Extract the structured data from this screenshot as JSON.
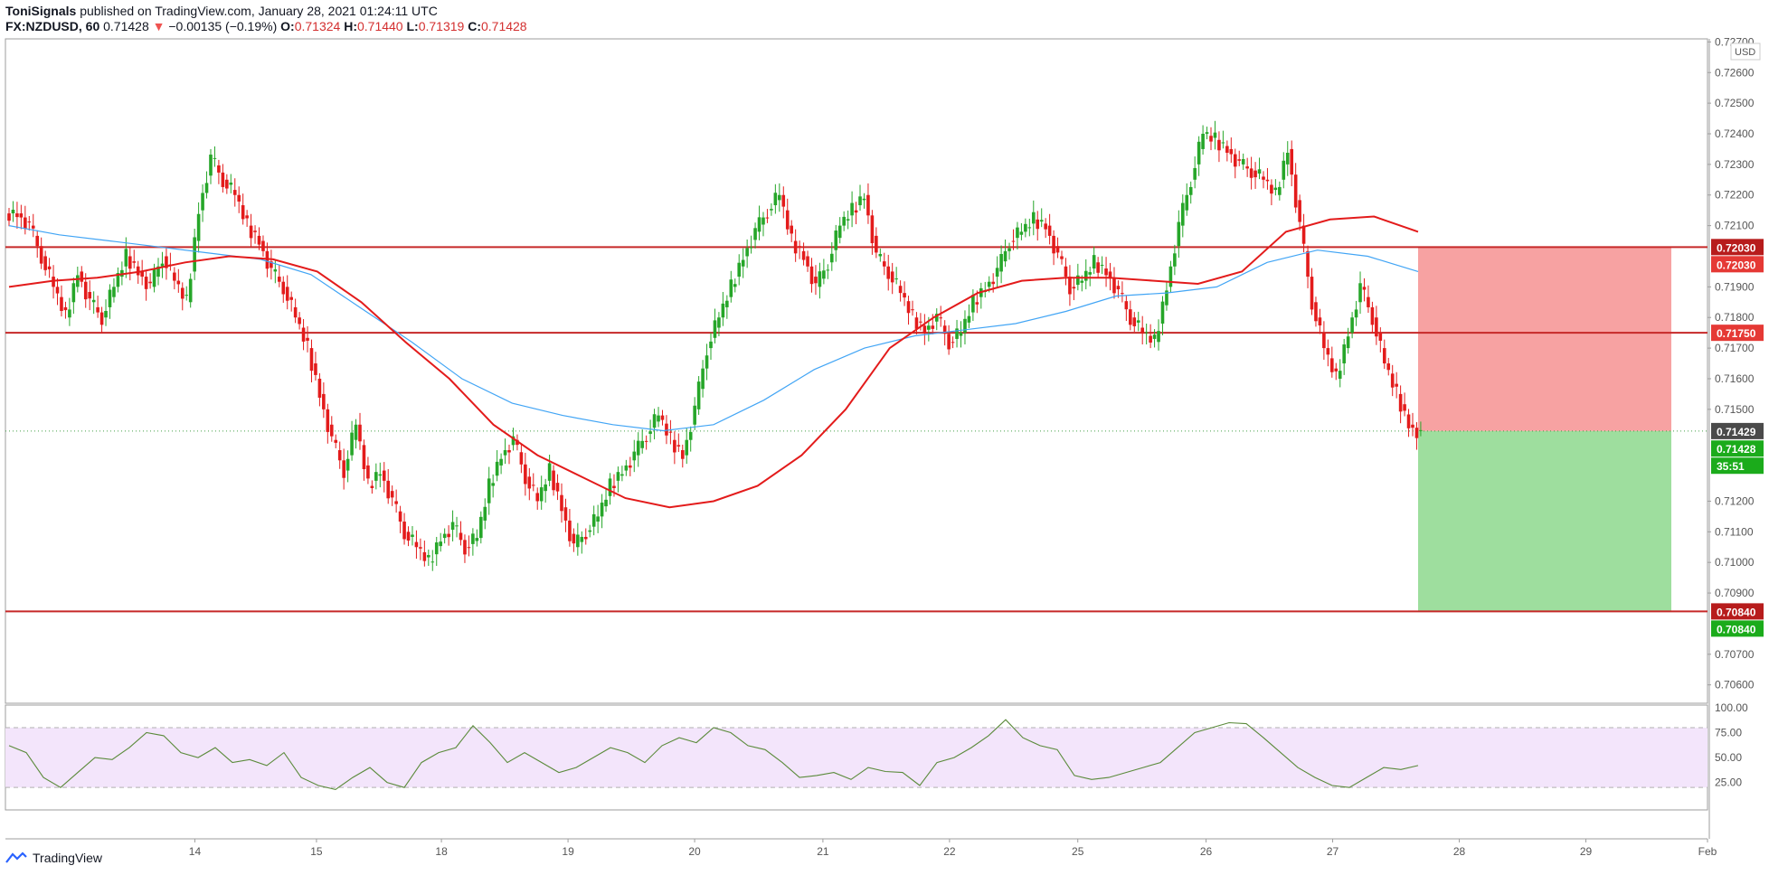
{
  "header": {
    "publisher": "ToniSignals",
    "published_text": " published on TradingView.com, January 28, 2021 01:24:11 UTC",
    "symbol": "FX:NZDUSD, 60",
    "last": "0.71428",
    "change": "−0.00135 (−0.19%)",
    "o_label": "O:",
    "o_val": "0.71324",
    "h_label": "H:",
    "h_val": "0.71440",
    "l_label": "L:",
    "l_val": "0.71319",
    "c_label": "C:",
    "c_val": "0.71428"
  },
  "price_axis": {
    "currency": "USD",
    "ticks": [
      "0.72700",
      "0.72600",
      "0.72500",
      "0.72400",
      "0.72300",
      "0.72200",
      "0.72100",
      "0.71900",
      "0.71800",
      "0.71700",
      "0.71600",
      "0.71500",
      "0.71200",
      "0.71100",
      "0.71000",
      "0.70900",
      "0.70700",
      "0.70600"
    ],
    "top_clip": "0.72700"
  },
  "price_tags": [
    {
      "text": "0.72030",
      "price": 0.7203,
      "color": "#b71c1c"
    },
    {
      "text": "0.72030",
      "price": 0.7203,
      "color": "#e53935",
      "offset": 1
    },
    {
      "text": "0.71750",
      "price": 0.7175,
      "color": "#e53935"
    },
    {
      "text": "0.71429",
      "price": 0.71429,
      "color": "#4a4a4a"
    },
    {
      "text": "0.71428",
      "price": 0.71428,
      "color": "#26a69a",
      "offset": 1,
      "fill": "#1bab1b"
    },
    {
      "text": "35:51",
      "price": 0.71428,
      "color": "#1bab1b",
      "offset": 2
    },
    {
      "text": "0.70840",
      "price": 0.7084,
      "color": "#b71c1c"
    },
    {
      "text": "0.70840",
      "price": 0.7084,
      "color": "#1bab1b",
      "offset": 1
    }
  ],
  "rsi_axis": [
    "100.00",
    "75.00",
    "50.00",
    "25.00"
  ],
  "time_axis": [
    {
      "label": "14",
      "pos": 0.092
    },
    {
      "label": "15",
      "pos": 0.165
    },
    {
      "label": "18",
      "pos": 0.24
    },
    {
      "label": "19",
      "pos": 0.316
    },
    {
      "label": "20",
      "pos": 0.392
    },
    {
      "label": "21",
      "pos": 0.469
    },
    {
      "label": "22",
      "pos": 0.545
    },
    {
      "label": "25",
      "pos": 0.622
    },
    {
      "label": "26",
      "pos": 0.699
    },
    {
      "label": "27",
      "pos": 0.775
    },
    {
      "label": "28",
      "pos": 0.851
    },
    {
      "label": "29",
      "pos": 0.927
    },
    {
      "label": "Feb",
      "pos": 1.0
    }
  ],
  "levels": [
    0.7203,
    0.7175,
    0.7084
  ],
  "current_price": 0.71429,
  "position": {
    "entry": 0.71429,
    "stop": 0.7203,
    "target": 0.7084
  },
  "chart_data": {
    "type": "candlestick",
    "symbol": "NZDUSD",
    "timeframe": "60",
    "ylim": [
      0.7054,
      0.7271
    ],
    "approx_close_path": [
      0.7214,
      0.721,
      0.72,
      0.719,
      0.718,
      0.7195,
      0.7185,
      0.718,
      0.719,
      0.72,
      0.7195,
      0.719,
      0.72,
      0.7192,
      0.7185,
      0.7215,
      0.7232,
      0.7225,
      0.722,
      0.721,
      0.7205,
      0.7195,
      0.719,
      0.718,
      0.717,
      0.7155,
      0.714,
      0.713,
      0.7145,
      0.7125,
      0.713,
      0.712,
      0.711,
      0.7105,
      0.71,
      0.7108,
      0.7112,
      0.7105,
      0.7108,
      0.7125,
      0.7135,
      0.714,
      0.7128,
      0.712,
      0.713,
      0.7118,
      0.7105,
      0.711,
      0.7115,
      0.7125,
      0.713,
      0.7135,
      0.7142,
      0.7148,
      0.714,
      0.7135,
      0.715,
      0.717,
      0.718,
      0.719,
      0.72,
      0.7208,
      0.7215,
      0.722,
      0.7205,
      0.72,
      0.719,
      0.7198,
      0.721,
      0.7215,
      0.722,
      0.72,
      0.7195,
      0.7188,
      0.718,
      0.7176,
      0.718,
      0.7172,
      0.7175,
      0.7185,
      0.719,
      0.7195,
      0.7205,
      0.7208,
      0.7212,
      0.721,
      0.72,
      0.719,
      0.7192,
      0.7198,
      0.7195,
      0.7188,
      0.718,
      0.7175,
      0.7172,
      0.719,
      0.721,
      0.7225,
      0.724,
      0.7238,
      0.7235,
      0.723,
      0.7228,
      0.7225,
      0.722,
      0.7235,
      0.721,
      0.7185,
      0.717,
      0.716,
      0.7175,
      0.719,
      0.718,
      0.7165,
      0.7155,
      0.7145,
      0.7142
    ],
    "ma_red_path": [
      0.719,
      0.7192,
      0.7193,
      0.7195,
      0.7198,
      0.72,
      0.7199,
      0.7195,
      0.7185,
      0.7172,
      0.716,
      0.7145,
      0.7135,
      0.7128,
      0.7121,
      0.7118,
      0.712,
      0.7125,
      0.7135,
      0.715,
      0.717,
      0.718,
      0.7188,
      0.7192,
      0.7193,
      0.7193,
      0.7192,
      0.7191,
      0.7195,
      0.7208,
      0.7212,
      0.7213,
      0.7208
    ],
    "ma_blue_path": [
      0.721,
      0.7207,
      0.7205,
      0.7203,
      0.7201,
      0.7199,
      0.7194,
      0.7183,
      0.7172,
      0.716,
      0.7152,
      0.7148,
      0.7145,
      0.7143,
      0.7145,
      0.7153,
      0.7163,
      0.717,
      0.7174,
      0.7176,
      0.7178,
      0.7182,
      0.7187,
      0.7188,
      0.719,
      0.7198,
      0.7202,
      0.72,
      0.7195
    ],
    "rsi_path": [
      62,
      55,
      30,
      20,
      35,
      50,
      48,
      60,
      75,
      72,
      55,
      50,
      60,
      45,
      48,
      42,
      55,
      30,
      22,
      18,
      30,
      40,
      25,
      20,
      45,
      55,
      60,
      82,
      65,
      45,
      55,
      45,
      35,
      40,
      50,
      60,
      55,
      45,
      62,
      70,
      65,
      80,
      75,
      62,
      58,
      45,
      30,
      32,
      35,
      28,
      40,
      36,
      35,
      22,
      45,
      50,
      60,
      72,
      88,
      70,
      62,
      58,
      32,
      28,
      30,
      35,
      40,
      45,
      60,
      75,
      80,
      85,
      84,
      70,
      55,
      40,
      30,
      22,
      20,
      30,
      40,
      38,
      42
    ]
  }
}
